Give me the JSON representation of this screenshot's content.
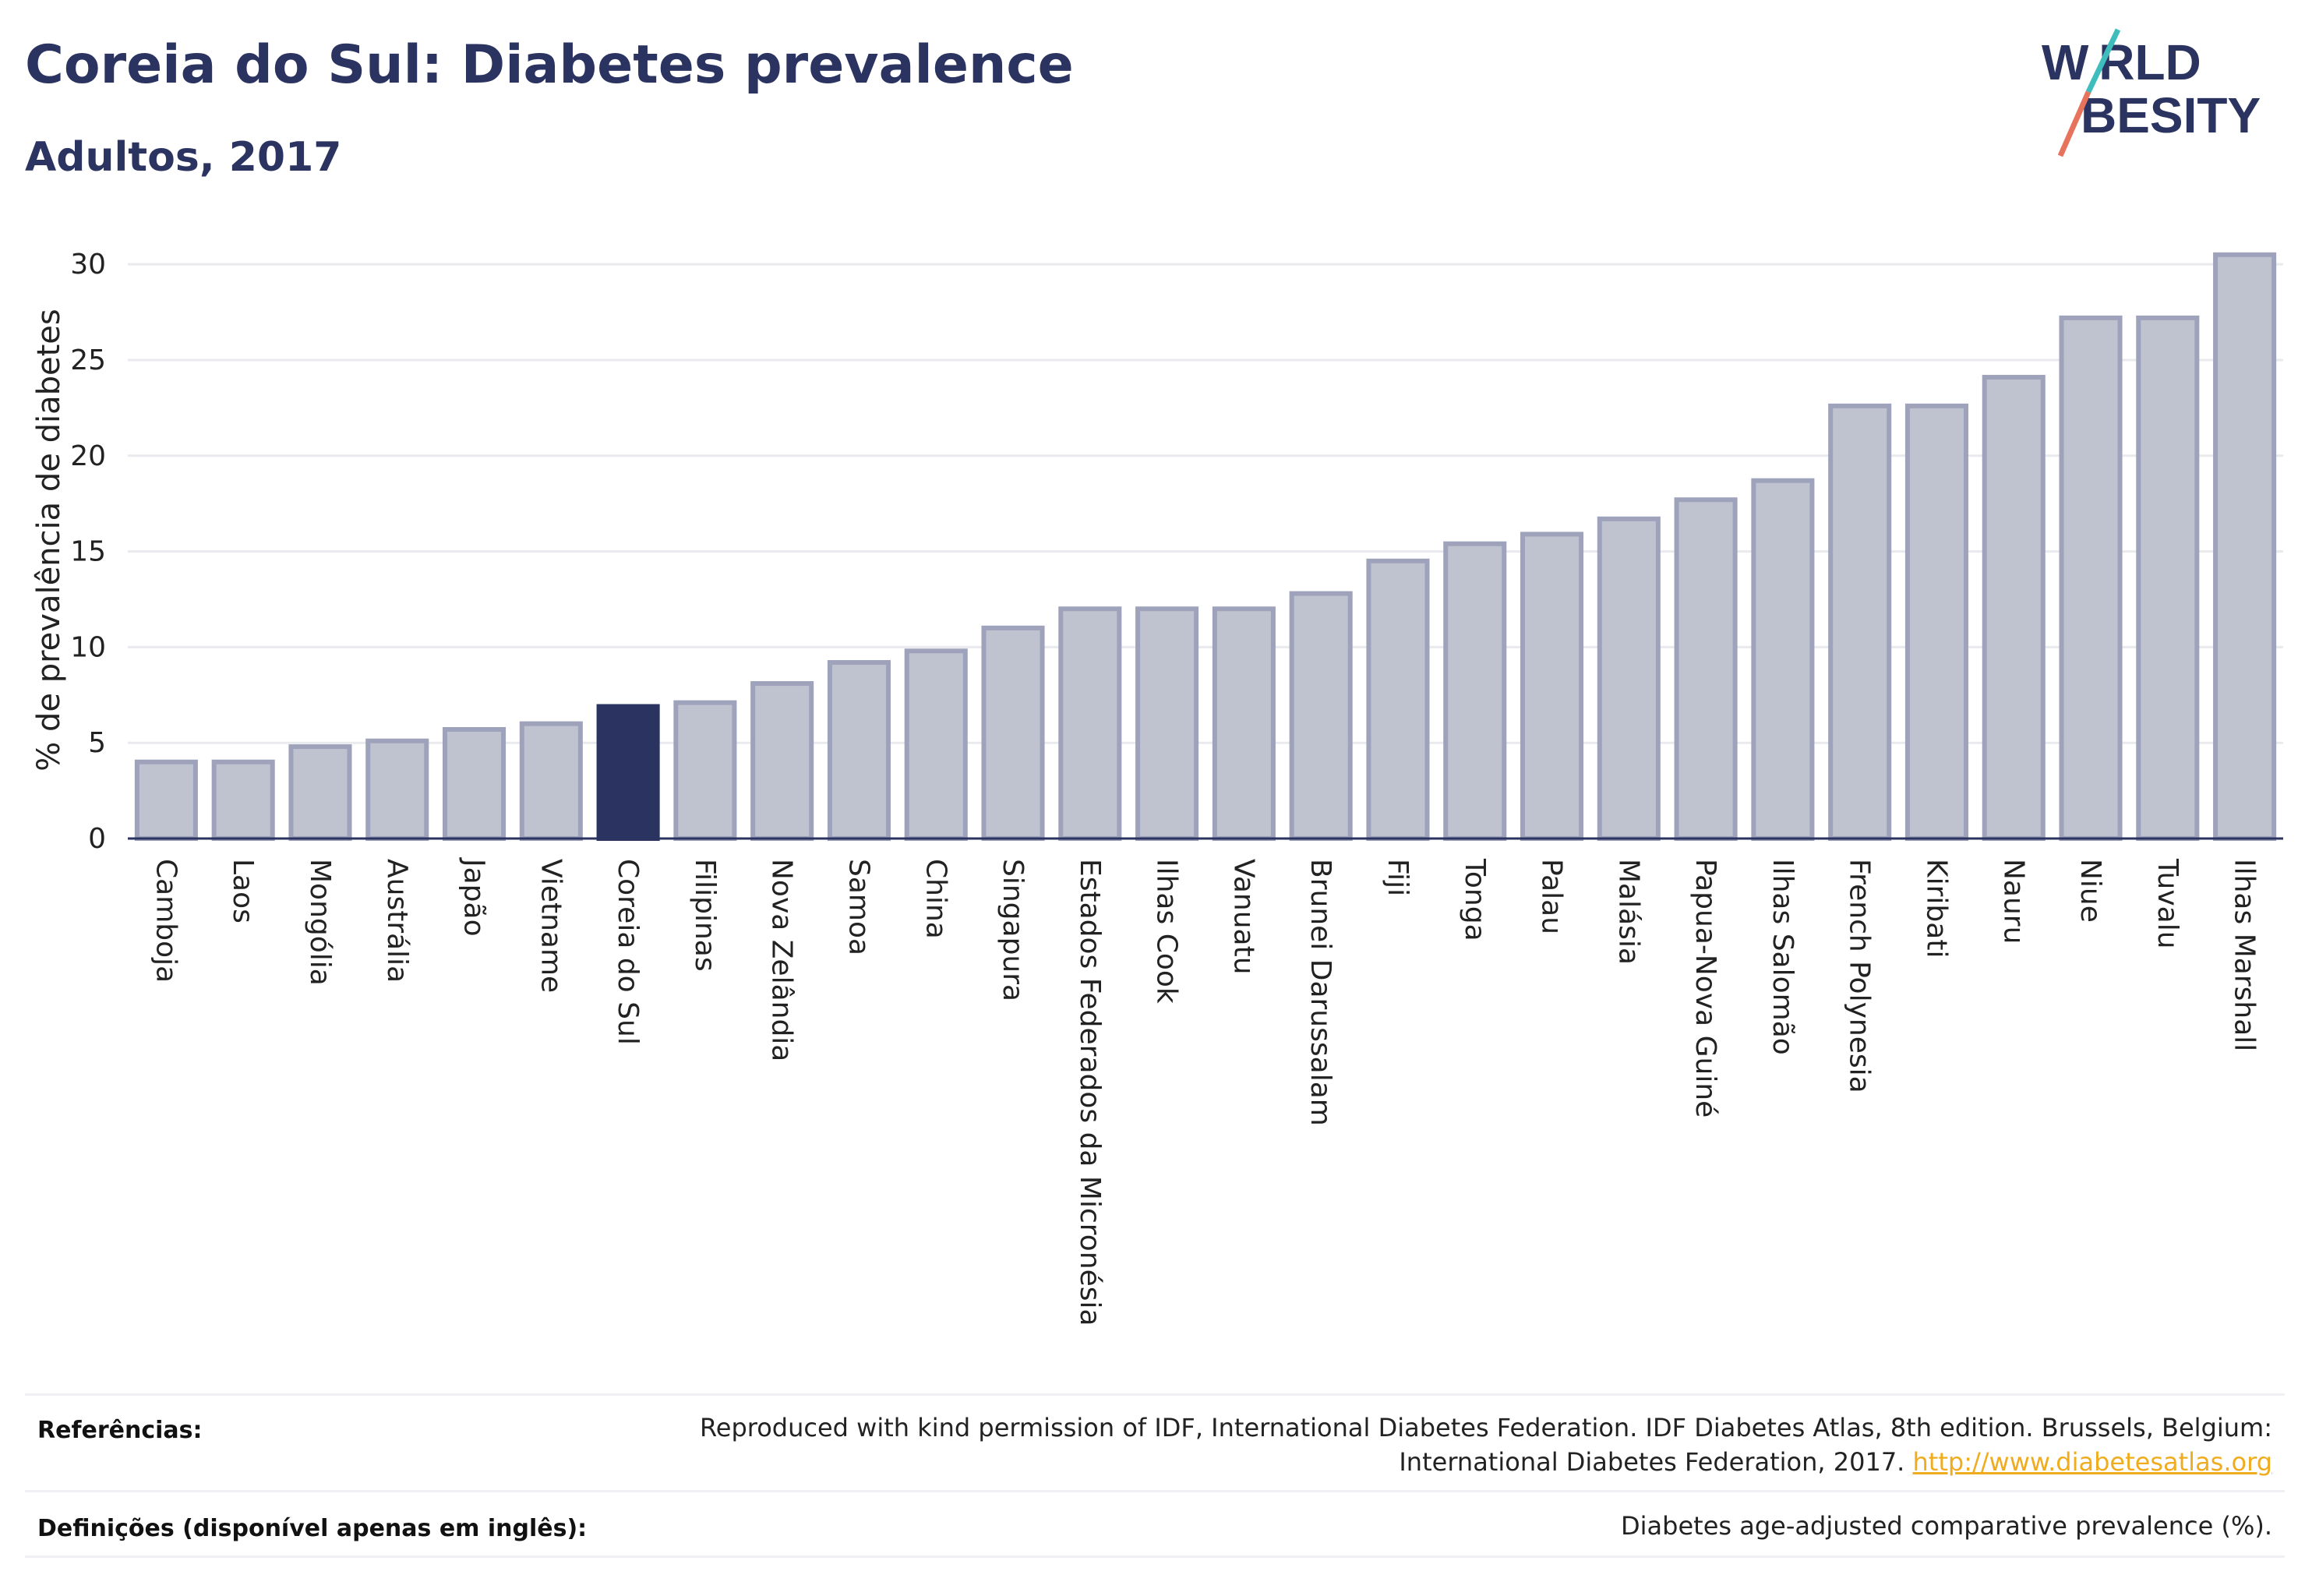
{
  "header": {
    "title": "Coreia do Sul: Diabetes prevalence",
    "subtitle": "Adultos, 2017"
  },
  "logo": {
    "line1": "W RLD",
    "line2": "BESITY",
    "accent_teal": "#3fbdbd",
    "accent_red": "#e8735d",
    "text_color": "#2b3361"
  },
  "colors": {
    "bar_fill": "#bfc2cf",
    "bar_stroke": "#9ea3bb",
    "highlight": "#2b3361",
    "grid": "#e9eaee",
    "text": "#2b3361"
  },
  "chart_data": {
    "type": "bar",
    "ylabel": "% de prevalência de diabetes",
    "xlabel": "",
    "ylim": [
      0,
      32
    ],
    "yticks": [
      0,
      5,
      10,
      15,
      20,
      25,
      30
    ],
    "grid": true,
    "highlight_category": "Coreia do Sul",
    "categories": [
      "Camboja",
      "Laos",
      "Mongólia",
      "Austrália",
      "Japão",
      "Vietname",
      "Coreia do Sul",
      "Filipinas",
      "Nova Zelândia",
      "Samoa",
      "China",
      "Singapura",
      "Estados Federados da Micronésia",
      "Ilhas Cook",
      "Vanuatu",
      "Brunei Darussalam",
      "Fiji",
      "Tonga",
      "Palau",
      "Malásia",
      "Papua-Nova Guiné",
      "Ilhas Salomão",
      "French Polynesia",
      "Kiribati",
      "Nauru",
      "Niue",
      "Tuvalu",
      "Ilhas Marshall"
    ],
    "values": [
      4.0,
      4.0,
      4.8,
      5.1,
      5.7,
      6.0,
      6.9,
      7.1,
      8.1,
      9.2,
      9.8,
      11.0,
      12.0,
      12.0,
      12.0,
      12.8,
      14.5,
      15.4,
      15.9,
      16.7,
      17.7,
      18.7,
      22.6,
      22.6,
      24.1,
      27.2,
      27.2,
      30.5
    ]
  },
  "footer": {
    "references_label": "Referências:",
    "references_line1": "Reproduced with kind permission of IDF, International Diabetes Federation. IDF Diabetes Atlas, 8th edition. Brussels, Belgium:",
    "references_line2": "International Diabetes Federation, 2017.",
    "references_link": "http://www.diabetesatlas.org",
    "definitions_label": "Definições (disponível apenas em inglês):",
    "definitions_text": "Diabetes age-adjusted comparative prevalence (%)."
  }
}
